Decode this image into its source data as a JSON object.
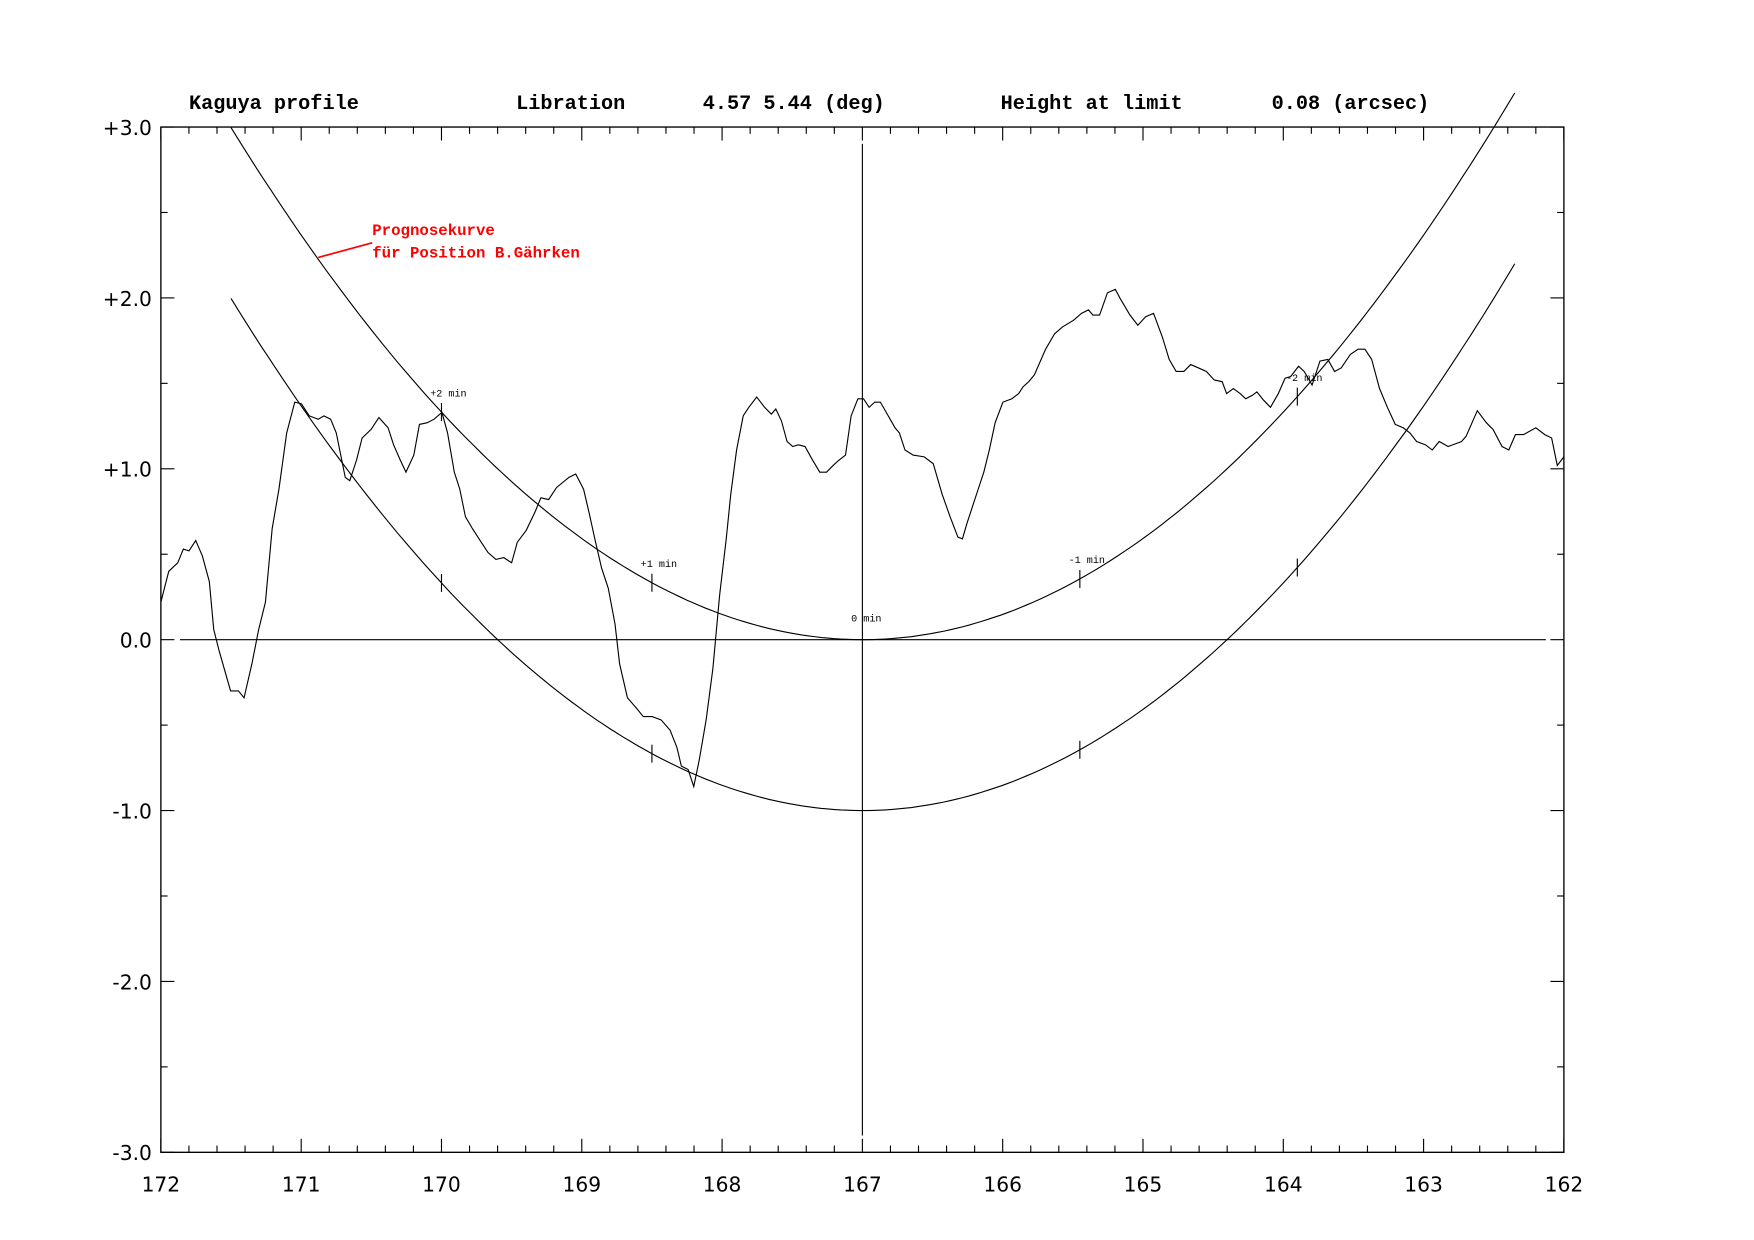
{
  "header": {
    "title": "Kaguya profile",
    "libration_label": "Libration",
    "libration_value": "4.57 5.44 (deg)",
    "height_label": "Height at limit",
    "height_value": "0.08 (arcsec)"
  },
  "annotation": {
    "line1": "Prognosekurve",
    "line2": "für Position B.Gährken",
    "color": "#ff0000"
  },
  "chart_data": {
    "type": "line",
    "title": "Kaguya profile",
    "xlim": [
      172,
      162
    ],
    "ylim": [
      -3,
      3
    ],
    "x_ticks": [
      "172",
      "171",
      "170",
      "169",
      "168",
      "167",
      "166",
      "165",
      "164",
      "163",
      "162"
    ],
    "y_ticks": [
      "+3.0",
      "+2.0",
      "+1.0",
      "0.0",
      "-1.0",
      "-2.0",
      "-3.0"
    ],
    "grid": false,
    "reference_lines": {
      "horizontal_y": 0,
      "vertical_x": 167
    },
    "prediction_curves": [
      {
        "vertex_x": 167,
        "vertex_y": 0,
        "coefficient": 0.148,
        "x_range": [
          171.5,
          162.35
        ]
      },
      {
        "vertex_x": 167,
        "vertex_y": -1,
        "coefficient": 0.148,
        "x_range": [
          171.5,
          162.35
        ]
      }
    ],
    "time_marks": [
      {
        "label": "+2 min",
        "x": 170
      },
      {
        "label": "+1 min",
        "x": 168.5
      },
      {
        "label": "0 min",
        "x": 167
      },
      {
        "label": "-1 min",
        "x": 165.45
      },
      {
        "label": "-2 min",
        "x": 163.9
      }
    ],
    "profile": [
      [
        172.0,
        0.22
      ],
      [
        171.944,
        0.4
      ],
      [
        171.88,
        0.45
      ],
      [
        171.84,
        0.53
      ],
      [
        171.8,
        0.52
      ],
      [
        171.752,
        0.58
      ],
      [
        171.704,
        0.49
      ],
      [
        171.655,
        0.34
      ],
      [
        171.623,
        0.06
      ],
      [
        171.583,
        -0.07
      ],
      [
        171.503,
        -0.3
      ],
      [
        171.447,
        -0.3
      ],
      [
        171.407,
        -0.34
      ],
      [
        171.351,
        -0.14
      ],
      [
        171.303,
        0.06
      ],
      [
        171.255,
        0.22
      ],
      [
        171.207,
        0.65
      ],
      [
        171.159,
        0.88
      ],
      [
        171.103,
        1.21
      ],
      [
        171.046,
        1.39
      ],
      [
        170.998,
        1.38
      ],
      [
        170.942,
        1.31
      ],
      [
        170.878,
        1.29
      ],
      [
        170.838,
        1.31
      ],
      [
        170.79,
        1.29
      ],
      [
        170.75,
        1.21
      ],
      [
        170.718,
        1.08
      ],
      [
        170.686,
        0.95
      ],
      [
        170.654,
        0.93
      ],
      [
        170.606,
        1.05
      ],
      [
        170.566,
        1.18
      ],
      [
        170.502,
        1.23
      ],
      [
        170.446,
        1.3
      ],
      [
        170.381,
        1.24
      ],
      [
        170.341,
        1.14
      ],
      [
        170.293,
        1.05
      ],
      [
        170.253,
        0.98
      ],
      [
        170.197,
        1.08
      ],
      [
        170.157,
        1.26
      ],
      [
        170.101,
        1.27
      ],
      [
        170.053,
        1.29
      ],
      [
        169.997,
        1.33
      ],
      [
        169.957,
        1.21
      ],
      [
        169.909,
        0.98
      ],
      [
        169.869,
        0.88
      ],
      [
        169.829,
        0.72
      ],
      [
        169.78,
        0.65
      ],
      [
        169.716,
        0.57
      ],
      [
        169.668,
        0.51
      ],
      [
        169.612,
        0.47
      ],
      [
        169.556,
        0.48
      ],
      [
        169.5,
        0.45
      ],
      [
        169.46,
        0.57
      ],
      [
        169.396,
        0.64
      ],
      [
        169.332,
        0.75
      ],
      [
        169.292,
        0.83
      ],
      [
        169.236,
        0.82
      ],
      [
        169.18,
        0.89
      ],
      [
        169.091,
        0.95
      ],
      [
        169.043,
        0.97
      ],
      [
        168.987,
        0.88
      ],
      [
        168.947,
        0.74
      ],
      [
        168.907,
        0.59
      ],
      [
        168.859,
        0.42
      ],
      [
        168.811,
        0.3
      ],
      [
        168.763,
        0.09
      ],
      [
        168.731,
        -0.14
      ],
      [
        168.675,
        -0.34
      ],
      [
        168.611,
        -0.4
      ],
      [
        168.562,
        -0.45
      ],
      [
        168.498,
        -0.45
      ],
      [
        168.434,
        -0.47
      ],
      [
        168.37,
        -0.53
      ],
      [
        168.322,
        -0.63
      ],
      [
        168.29,
        -0.74
      ],
      [
        168.242,
        -0.76
      ],
      [
        168.202,
        -0.86
      ],
      [
        168.162,
        -0.7
      ],
      [
        168.114,
        -0.47
      ],
      [
        168.066,
        -0.17
      ],
      [
        168.018,
        0.26
      ],
      [
        167.97,
        0.59
      ],
      [
        167.938,
        0.85
      ],
      [
        167.897,
        1.11
      ],
      [
        167.849,
        1.31
      ],
      [
        167.809,
        1.36
      ],
      [
        167.753,
        1.42
      ],
      [
        167.697,
        1.36
      ],
      [
        167.649,
        1.32
      ],
      [
        167.617,
        1.35
      ],
      [
        167.577,
        1.28
      ],
      [
        167.537,
        1.16
      ],
      [
        167.497,
        1.13
      ],
      [
        167.457,
        1.14
      ],
      [
        167.409,
        1.13
      ],
      [
        167.361,
        1.06
      ],
      [
        167.304,
        0.98
      ],
      [
        167.256,
        0.98
      ],
      [
        167.208,
        1.02
      ],
      [
        167.168,
        1.05
      ],
      [
        167.12,
        1.08
      ],
      [
        167.08,
        1.31
      ],
      [
        167.032,
        1.41
      ],
      [
        166.992,
        1.41
      ],
      [
        166.952,
        1.36
      ],
      [
        166.912,
        1.39
      ],
      [
        166.872,
        1.39
      ],
      [
        166.816,
        1.31
      ],
      [
        166.768,
        1.24
      ],
      [
        166.736,
        1.21
      ],
      [
        166.696,
        1.11
      ],
      [
        166.639,
        1.08
      ],
      [
        166.559,
        1.07
      ],
      [
        166.495,
        1.03
      ],
      [
        166.431,
        0.85
      ],
      [
        166.375,
        0.72
      ],
      [
        166.319,
        0.6
      ],
      [
        166.287,
        0.59
      ],
      [
        166.255,
        0.68
      ],
      [
        166.215,
        0.78
      ],
      [
        166.175,
        0.88
      ],
      [
        166.135,
        0.98
      ],
      [
        166.095,
        1.11
      ],
      [
        166.054,
        1.27
      ],
      [
        165.998,
        1.39
      ],
      [
        165.934,
        1.41
      ],
      [
        165.886,
        1.44
      ],
      [
        165.854,
        1.48
      ],
      [
        165.814,
        1.51
      ],
      [
        165.774,
        1.55
      ],
      [
        165.694,
        1.7
      ],
      [
        165.63,
        1.79
      ],
      [
        165.574,
        1.83
      ],
      [
        165.494,
        1.87
      ],
      [
        165.438,
        1.91
      ],
      [
        165.389,
        1.93
      ],
      [
        165.357,
        1.9
      ],
      [
        165.309,
        1.9
      ],
      [
        165.253,
        2.03
      ],
      [
        165.197,
        2.05
      ],
      [
        165.165,
        2.0
      ],
      [
        165.093,
        1.9
      ],
      [
        165.037,
        1.84
      ],
      [
        164.981,
        1.89
      ],
      [
        164.925,
        1.91
      ],
      [
        164.861,
        1.77
      ],
      [
        164.813,
        1.64
      ],
      [
        164.764,
        1.57
      ],
      [
        164.708,
        1.57
      ],
      [
        164.66,
        1.61
      ],
      [
        164.604,
        1.59
      ],
      [
        164.548,
        1.57
      ],
      [
        164.492,
        1.52
      ],
      [
        164.436,
        1.51
      ],
      [
        164.404,
        1.44
      ],
      [
        164.356,
        1.47
      ],
      [
        164.308,
        1.44
      ],
      [
        164.268,
        1.41
      ],
      [
        164.22,
        1.43
      ],
      [
        164.188,
        1.45
      ],
      [
        164.139,
        1.4
      ],
      [
        164.091,
        1.36
      ],
      [
        164.035,
        1.44
      ],
      [
        163.987,
        1.53
      ],
      [
        163.947,
        1.54
      ],
      [
        163.891,
        1.6
      ],
      [
        163.851,
        1.57
      ],
      [
        163.795,
        1.49
      ],
      [
        163.739,
        1.63
      ],
      [
        163.683,
        1.64
      ],
      [
        163.635,
        1.57
      ],
      [
        163.587,
        1.59
      ],
      [
        163.522,
        1.67
      ],
      [
        163.466,
        1.7
      ],
      [
        163.418,
        1.7
      ],
      [
        163.37,
        1.64
      ],
      [
        163.314,
        1.47
      ],
      [
        163.258,
        1.36
      ],
      [
        163.202,
        1.26
      ],
      [
        163.146,
        1.24
      ],
      [
        163.098,
        1.21
      ],
      [
        163.05,
        1.16
      ],
      [
        162.986,
        1.14
      ],
      [
        162.938,
        1.11
      ],
      [
        162.889,
        1.16
      ],
      [
        162.825,
        1.13
      ],
      [
        162.793,
        1.14
      ],
      [
        162.729,
        1.16
      ],
      [
        162.697,
        1.19
      ],
      [
        162.617,
        1.34
      ],
      [
        162.553,
        1.27
      ],
      [
        162.505,
        1.23
      ],
      [
        162.441,
        1.13
      ],
      [
        162.393,
        1.11
      ],
      [
        162.345,
        1.2
      ],
      [
        162.288,
        1.2
      ],
      [
        162.2,
        1.24
      ],
      [
        162.136,
        1.2
      ],
      [
        162.087,
        1.18
      ],
      [
        162.047,
        1.02
      ],
      [
        162.0,
        1.07
      ]
    ]
  }
}
